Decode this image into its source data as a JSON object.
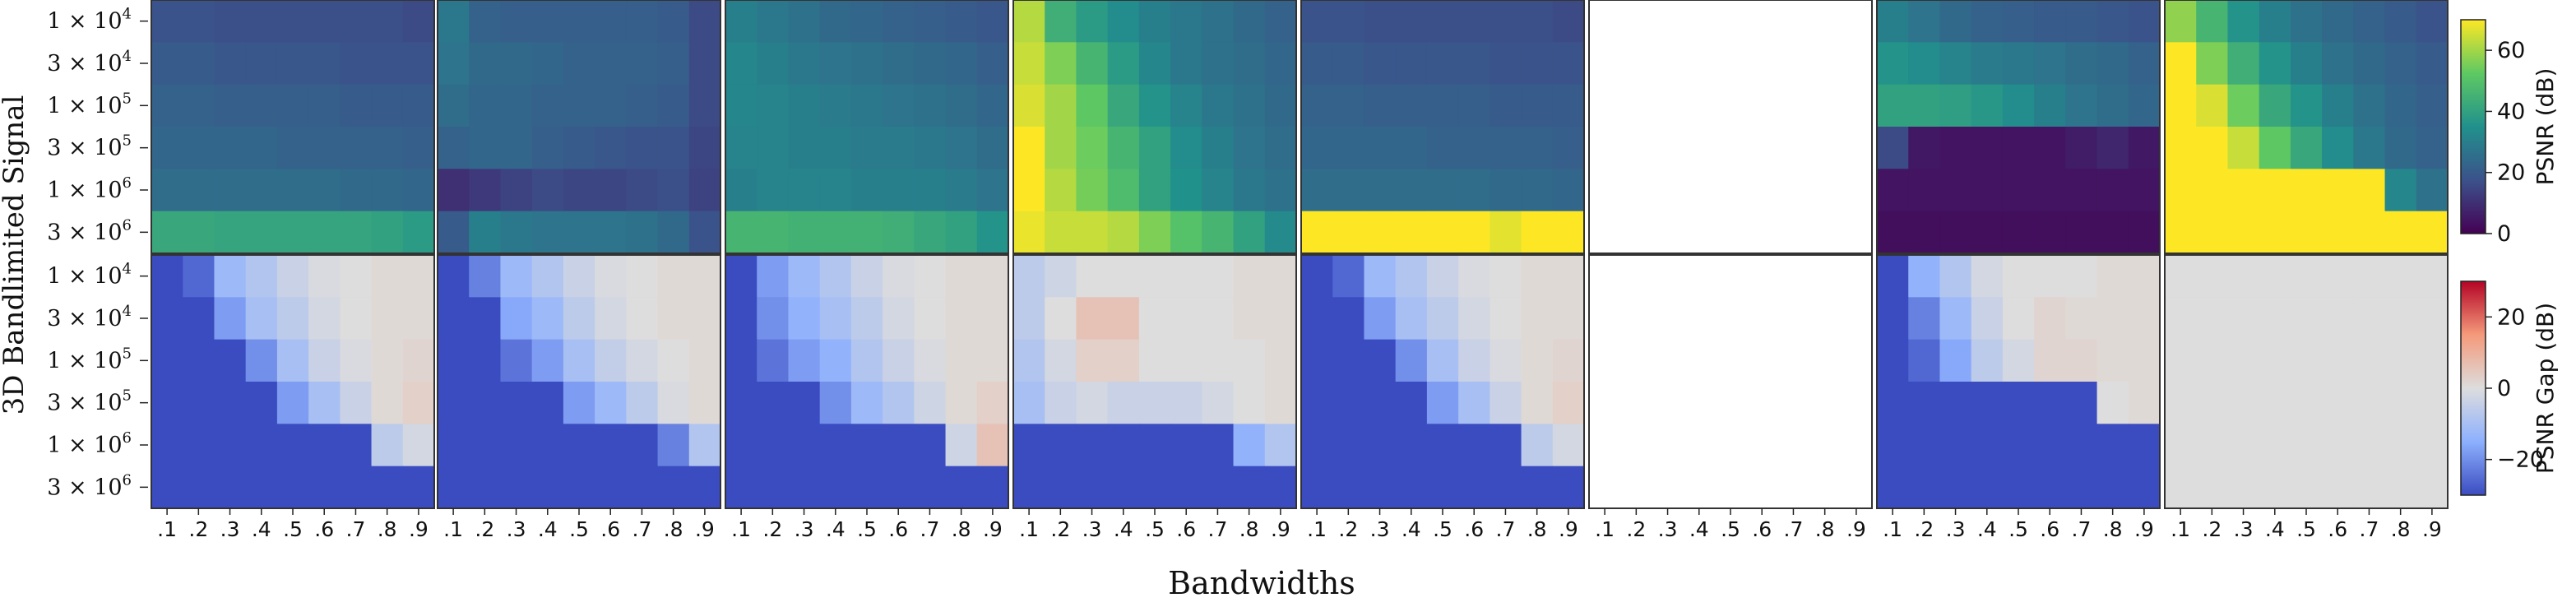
{
  "figure": {
    "ylabel": "3D Bandlimited Signal",
    "xlabel": "Bandwidths"
  },
  "colorbars": [
    {
      "label": "PSNR (dB)",
      "ticks": [
        "0",
        "20",
        "40",
        "60"
      ],
      "tick_values": [
        0,
        20,
        40,
        60
      ],
      "range": [
        0,
        70
      ],
      "colormap": "viridis"
    },
    {
      "label": "PSNR Gap (dB)",
      "ticks": [
        "−20",
        "0",
        "20"
      ],
      "tick_values": [
        -20,
        0,
        20
      ],
      "range": [
        -30,
        30
      ],
      "colormap": "coolwarm"
    }
  ],
  "chart_data": {
    "type": "heatmap",
    "x": [
      ".1",
      ".2",
      ".3",
      ".4",
      ".5",
      ".6",
      ".7",
      ".8",
      ".9"
    ],
    "y_labels": [
      "1 × 10",
      "3 × 10",
      "1 × 10",
      "3 × 10",
      "1 × 10",
      "3 × 10"
    ],
    "y_exponents": [
      "4",
      "4",
      "5",
      "5",
      "6",
      "6"
    ],
    "panels": [
      {
        "psnr": [
          [
            18,
            18,
            17,
            17,
            17,
            17,
            17,
            17,
            16
          ],
          [
            20,
            20,
            19,
            19,
            19,
            19,
            18,
            18,
            18
          ],
          [
            22,
            22,
            21,
            21,
            21,
            21,
            20,
            20,
            20
          ],
          [
            23,
            23,
            23,
            23,
            22,
            22,
            22,
            22,
            21
          ],
          [
            25,
            25,
            25,
            25,
            25,
            25,
            24,
            24,
            23
          ],
          [
            42,
            42,
            41,
            41,
            41,
            41,
            41,
            40,
            38
          ]
        ],
        "gap": [
          [
            -30,
            -26,
            -12,
            -8,
            -4,
            -1,
            0,
            1,
            1
          ],
          [
            -30,
            -30,
            -18,
            -10,
            -6,
            -2,
            0,
            1,
            1
          ],
          [
            -30,
            -30,
            -30,
            -20,
            -10,
            -4,
            -1,
            1,
            2
          ],
          [
            -30,
            -30,
            -30,
            -30,
            -18,
            -10,
            -4,
            1,
            3
          ],
          [
            -30,
            -30,
            -30,
            -30,
            -30,
            -30,
            -30,
            -6,
            -2
          ],
          [
            -30,
            -30,
            -30,
            -30,
            -30,
            -30,
            -30,
            -30,
            -30
          ]
        ]
      },
      {
        "psnr": [
          [
            28,
            22,
            21,
            21,
            21,
            21,
            21,
            20,
            16
          ],
          [
            27,
            24,
            24,
            23,
            22,
            22,
            22,
            21,
            16
          ],
          [
            25,
            23,
            23,
            22,
            22,
            22,
            21,
            20,
            16
          ],
          [
            22,
            23,
            23,
            21,
            20,
            19,
            18,
            18,
            15
          ],
          [
            10,
            12,
            14,
            16,
            15,
            15,
            16,
            17,
            14
          ],
          [
            20,
            30,
            28,
            27,
            27,
            27,
            26,
            24,
            18
          ]
        ],
        "gap": [
          [
            -30,
            -22,
            -12,
            -8,
            -4,
            -1,
            0,
            1,
            1
          ],
          [
            -30,
            -30,
            -16,
            -12,
            -6,
            -2,
            0,
            1,
            1
          ],
          [
            -30,
            -30,
            -24,
            -18,
            -10,
            -5,
            -2,
            0,
            1
          ],
          [
            -30,
            -30,
            -30,
            -30,
            -18,
            -12,
            -6,
            -1,
            1
          ],
          [
            -30,
            -30,
            -30,
            -30,
            -30,
            -30,
            -30,
            -22,
            -8
          ],
          [
            -30,
            -30,
            -30,
            -30,
            -30,
            -30,
            -30,
            -30,
            -30
          ]
        ]
      },
      {
        "psnr": [
          [
            30,
            28,
            26,
            24,
            23,
            22,
            21,
            20,
            19
          ],
          [
            32,
            30,
            28,
            27,
            26,
            25,
            24,
            23,
            21
          ],
          [
            32,
            31,
            30,
            29,
            28,
            27,
            26,
            25,
            23
          ],
          [
            31,
            31,
            30,
            30,
            29,
            29,
            28,
            27,
            25
          ],
          [
            30,
            31,
            31,
            31,
            30,
            30,
            30,
            29,
            27
          ],
          [
            46,
            46,
            45,
            45,
            45,
            44,
            42,
            40,
            36
          ]
        ],
        "gap": [
          [
            -30,
            -18,
            -12,
            -8,
            -4,
            -1,
            0,
            1,
            1
          ],
          [
            -30,
            -20,
            -14,
            -10,
            -6,
            -2,
            0,
            1,
            1
          ],
          [
            -30,
            -24,
            -18,
            -14,
            -8,
            -4,
            -1,
            1,
            1
          ],
          [
            -30,
            -30,
            -30,
            -20,
            -12,
            -8,
            -3,
            1,
            3
          ],
          [
            -30,
            -30,
            -30,
            -30,
            -30,
            -30,
            -30,
            -3,
            6
          ],
          [
            -30,
            -30,
            -30,
            -30,
            -30,
            -30,
            -30,
            -30,
            -30
          ]
        ]
      },
      {
        "psnr": [
          [
            62,
            44,
            38,
            34,
            30,
            28,
            26,
            24,
            22
          ],
          [
            64,
            56,
            46,
            38,
            32,
            28,
            26,
            25,
            23
          ],
          [
            66,
            60,
            52,
            42,
            36,
            31,
            28,
            26,
            24
          ],
          [
            70,
            60,
            54,
            46,
            40,
            34,
            30,
            27,
            25
          ],
          [
            70,
            62,
            55,
            48,
            40,
            35,
            31,
            28,
            26
          ],
          [
            68,
            64,
            64,
            62,
            56,
            50,
            46,
            40,
            33
          ]
        ],
        "gap": [
          [
            -6,
            -3,
            0,
            0,
            0,
            0,
            0,
            1,
            1
          ],
          [
            -6,
            0,
            6,
            6,
            0,
            0,
            0,
            1,
            1
          ],
          [
            -8,
            -2,
            3,
            3,
            0,
            0,
            0,
            0,
            1
          ],
          [
            -10,
            -4,
            -2,
            -4,
            -4,
            -4,
            -2,
            0,
            1
          ],
          [
            -30,
            -30,
            -30,
            -30,
            -30,
            -30,
            -30,
            -14,
            -8
          ],
          [
            -30,
            -30,
            -30,
            -30,
            -30,
            -30,
            -30,
            -30,
            -30
          ]
        ]
      },
      {
        "psnr": [
          [
            18,
            18,
            17,
            17,
            17,
            17,
            17,
            17,
            16
          ],
          [
            20,
            20,
            19,
            19,
            19,
            19,
            18,
            18,
            18
          ],
          [
            22,
            22,
            21,
            21,
            21,
            21,
            20,
            20,
            20
          ],
          [
            23,
            23,
            23,
            23,
            22,
            22,
            22,
            22,
            21
          ],
          [
            25,
            25,
            25,
            25,
            25,
            25,
            24,
            24,
            23
          ],
          [
            70,
            70,
            70,
            70,
            70,
            70,
            67,
            70,
            70
          ]
        ],
        "gap": [
          [
            -30,
            -26,
            -12,
            -8,
            -4,
            -1,
            0,
            1,
            1
          ],
          [
            -30,
            -30,
            -18,
            -10,
            -6,
            -2,
            0,
            1,
            1
          ],
          [
            -30,
            -30,
            -30,
            -20,
            -10,
            -4,
            -1,
            1,
            2
          ],
          [
            -30,
            -30,
            -30,
            -30,
            -18,
            -10,
            -4,
            1,
            3
          ],
          [
            -30,
            -30,
            -30,
            -30,
            -30,
            -30,
            -30,
            -6,
            -2
          ],
          [
            -30,
            -30,
            -30,
            -30,
            -30,
            -30,
            -30,
            -30,
            -30
          ]
        ]
      },
      {
        "psnr": null,
        "gap": null
      },
      {
        "psnr": [
          [
            30,
            27,
            24,
            22,
            21,
            20,
            20,
            19,
            18
          ],
          [
            36,
            34,
            31,
            29,
            28,
            27,
            25,
            24,
            22
          ],
          [
            40,
            40,
            39,
            37,
            34,
            30,
            27,
            25,
            23
          ],
          [
            16,
            5,
            4,
            4,
            4,
            4,
            6,
            8,
            5
          ],
          [
            4,
            4,
            4,
            4,
            4,
            4,
            4,
            4,
            4
          ],
          [
            3,
            3,
            3,
            3,
            3,
            3,
            3,
            3,
            3
          ]
        ],
        "gap": [
          [
            -30,
            -14,
            -8,
            -2,
            0,
            0,
            0,
            1,
            1
          ],
          [
            -30,
            -22,
            -12,
            -4,
            0,
            2,
            1,
            1,
            1
          ],
          [
            -30,
            -26,
            -16,
            -6,
            -2,
            2,
            2,
            1,
            1
          ],
          [
            -30,
            -30,
            -30,
            -30,
            -30,
            -30,
            -30,
            0,
            1
          ],
          [
            -30,
            -30,
            -30,
            -30,
            -30,
            -30,
            -30,
            -30,
            -30
          ],
          [
            -30,
            -30,
            -30,
            -30,
            -30,
            -30,
            -30,
            -30,
            -30
          ]
        ]
      },
      {
        "psnr": [
          [
            58,
            46,
            36,
            30,
            26,
            24,
            22,
            20,
            18
          ],
          [
            70,
            56,
            44,
            36,
            30,
            26,
            24,
            22,
            20
          ],
          [
            70,
            66,
            54,
            42,
            36,
            30,
            26,
            23,
            21
          ],
          [
            70,
            70,
            64,
            52,
            42,
            34,
            28,
            24,
            22
          ],
          [
            70,
            70,
            70,
            70,
            70,
            70,
            70,
            32,
            26
          ],
          [
            70,
            70,
            70,
            70,
            70,
            70,
            70,
            70,
            70
          ]
        ],
        "gap": [
          [
            0,
            0,
            0,
            0,
            0,
            0,
            0,
            0,
            0
          ],
          [
            0,
            0,
            0,
            0,
            0,
            0,
            0,
            0,
            0
          ],
          [
            0,
            0,
            0,
            0,
            0,
            0,
            0,
            0,
            0
          ],
          [
            0,
            0,
            0,
            0,
            0,
            0,
            0,
            0,
            0
          ],
          [
            0,
            0,
            0,
            0,
            0,
            0,
            0,
            0,
            0
          ],
          [
            0,
            0,
            0,
            0,
            0,
            0,
            0,
            0,
            0
          ]
        ]
      }
    ]
  }
}
